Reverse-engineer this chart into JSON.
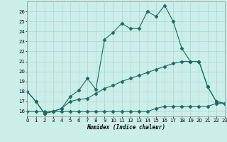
{
  "xlabel": "Humidex (Indice chaleur)",
  "background_color": "#cceee8",
  "line_color": "#1a6b5e",
  "x_values": [
    0,
    1,
    2,
    3,
    4,
    5,
    6,
    7,
    8,
    9,
    10,
    11,
    12,
    13,
    14,
    15,
    16,
    17,
    18,
    19,
    20,
    21,
    22,
    23
  ],
  "main_line": [
    18.0,
    17.0,
    15.8,
    16.0,
    16.3,
    17.5,
    18.1,
    19.3,
    18.2,
    23.2,
    23.9,
    24.8,
    24.3,
    24.3,
    26.0,
    25.5,
    26.6,
    25.0,
    22.3,
    21.0,
    21.0,
    18.5,
    17.0,
    16.8
  ],
  "line2": [
    18.0,
    17.0,
    15.8,
    16.0,
    16.3,
    17.0,
    17.2,
    17.3,
    17.8,
    18.3,
    18.6,
    19.0,
    19.3,
    19.6,
    19.9,
    20.2,
    20.5,
    20.8,
    21.0,
    21.0,
    21.0,
    18.5,
    17.0,
    16.8
  ],
  "line3": [
    16.0,
    16.0,
    16.0,
    16.0,
    16.0,
    16.0,
    16.0,
    16.0,
    16.0,
    16.0,
    16.0,
    16.0,
    16.0,
    16.0,
    16.0,
    16.3,
    16.5,
    16.5,
    16.5,
    16.5,
    16.5,
    16.5,
    16.8,
    16.8
  ],
  "xlim": [
    0,
    23
  ],
  "ylim": [
    15.5,
    27.0
  ],
  "yticks": [
    16,
    17,
    18,
    19,
    20,
    21,
    22,
    23,
    24,
    25,
    26
  ],
  "xticks": [
    0,
    1,
    2,
    3,
    4,
    5,
    6,
    7,
    8,
    9,
    10,
    11,
    12,
    13,
    14,
    15,
    16,
    17,
    18,
    19,
    20,
    21,
    22,
    23
  ],
  "grid_color": "#a8d8d0",
  "markersize": 2.5
}
